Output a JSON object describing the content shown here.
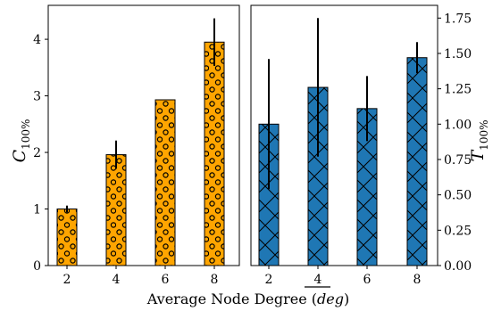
{
  "chart_data": [
    {
      "type": "bar",
      "categories": [
        "2",
        "4",
        "6",
        "8"
      ],
      "values": [
        1.0,
        1.96,
        2.93,
        3.95
      ],
      "errors": [
        0.06,
        0.25,
        0.0,
        0.42
      ],
      "ylim": [
        0,
        4.6
      ],
      "yticks": [
        0,
        1,
        2,
        3,
        4
      ],
      "ytick_labels": [
        "0",
        "1",
        "2",
        "3",
        "4"
      ],
      "ylabel_main": "C",
      "ylabel_sub": "100%",
      "ylabel_side": "left",
      "color": "#FFA500",
      "hatch": "circles",
      "grid": false
    },
    {
      "type": "bar",
      "categories": [
        "2",
        "4",
        "6",
        "8"
      ],
      "values": [
        1.0,
        1.26,
        1.11,
        1.47
      ],
      "errors": [
        0.46,
        0.49,
        0.23,
        0.11
      ],
      "ylim": [
        0,
        1.84
      ],
      "yticks": [
        0,
        0.25,
        0.5,
        0.75,
        1.0,
        1.25,
        1.5,
        1.75
      ],
      "ytick_labels": [
        "0.00",
        "0.25",
        "0.50",
        "0.75",
        "1.00",
        "1.25",
        "1.50",
        "1.75"
      ],
      "ylabel_main": "T",
      "ylabel_sub": "100%",
      "ylabel_side": "right",
      "color": "#1F77B4",
      "hatch": "cross",
      "grid": false
    }
  ],
  "shared": {
    "xlabel_prefix": "Average Node Degree (",
    "xlabel_var": "deg",
    "xlabel_suffix": ")"
  }
}
